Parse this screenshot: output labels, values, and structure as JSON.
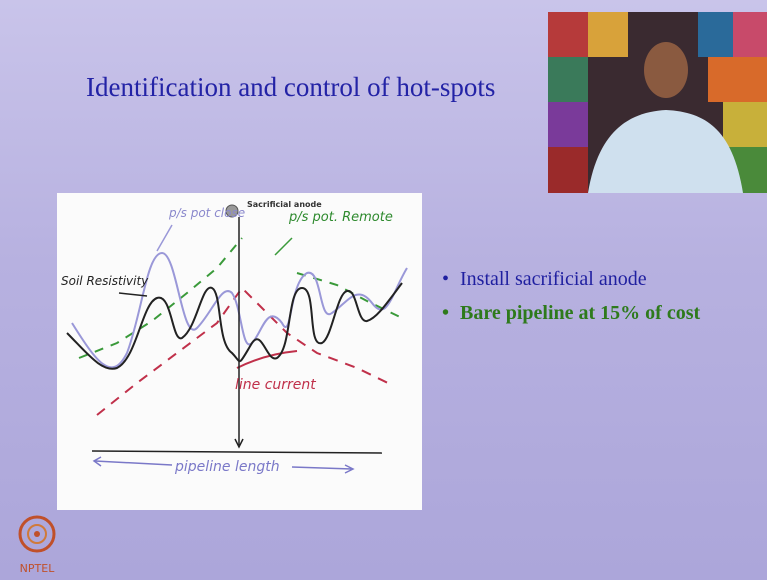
{
  "slide": {
    "title": "Identification and control of hot-spots",
    "figure": {
      "ps_pot_close": "p/s pot close",
      "sacrificial_anode": "Sacrificial anode",
      "ps_pot_remote": "p/s pot. Remote",
      "soil_resistivity": "Soil Resistivity",
      "line_current": "line current",
      "pipeline_length": "pipeline length"
    },
    "bullets": [
      "Install sacrificial anode",
      "Bare pipeline at 15% of cost"
    ],
    "logo": "NPTEL"
  }
}
